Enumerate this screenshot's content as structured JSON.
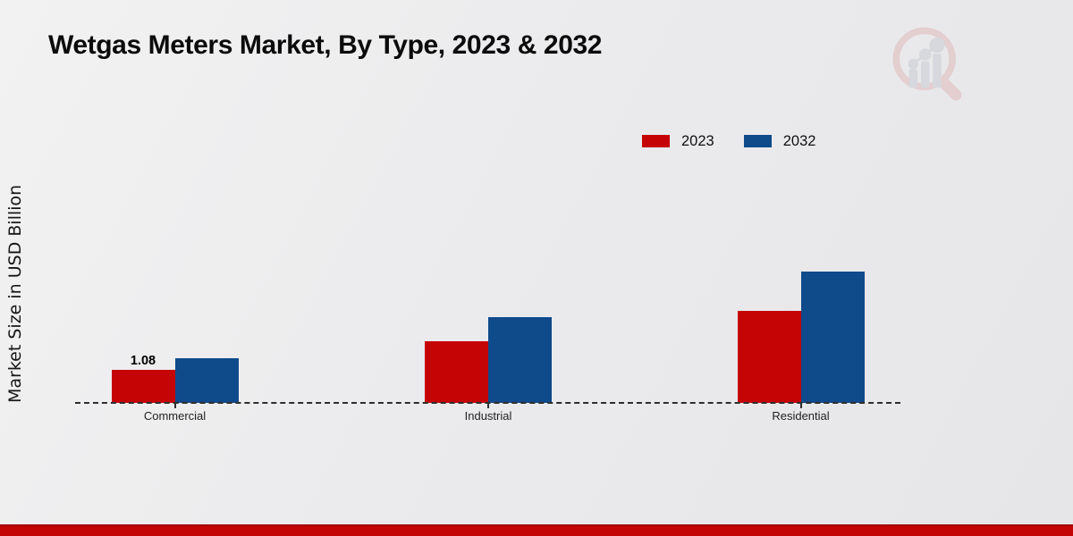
{
  "header": {
    "title": "Wetgas Meters Market, By Type, 2023 & 2032"
  },
  "axis": {
    "y_label": "Market Size in USD Billion"
  },
  "legend": {
    "items": [
      {
        "label": "2023",
        "color": "#c50505"
      },
      {
        "label": "2032",
        "color": "#0f4a8b"
      }
    ]
  },
  "watermark": "market-research-future-logo",
  "footer": {
    "bar_color": "#c40505"
  },
  "chart_data": {
    "type": "bar",
    "title": "Wetgas Meters Market, By Type, 2023 & 2032",
    "categories": [
      "Commercial",
      "Industrial",
      "Residential"
    ],
    "series": [
      {
        "name": "2023",
        "color": "#c50505",
        "values": [
          1.08,
          2.0,
          3.0
        ]
      },
      {
        "name": "2032",
        "color": "#0f4a8b",
        "values": [
          1.45,
          2.8,
          4.3
        ]
      }
    ],
    "xlabel": "",
    "ylabel": "Market Size in USD Billion",
    "ylim": [
      0,
      4.6
    ],
    "grid": false,
    "baseline_style": "dashed",
    "legend_position": "top-right",
    "annotations": [
      {
        "series": "2023",
        "category": "Commercial",
        "text": "1.08"
      }
    ]
  }
}
